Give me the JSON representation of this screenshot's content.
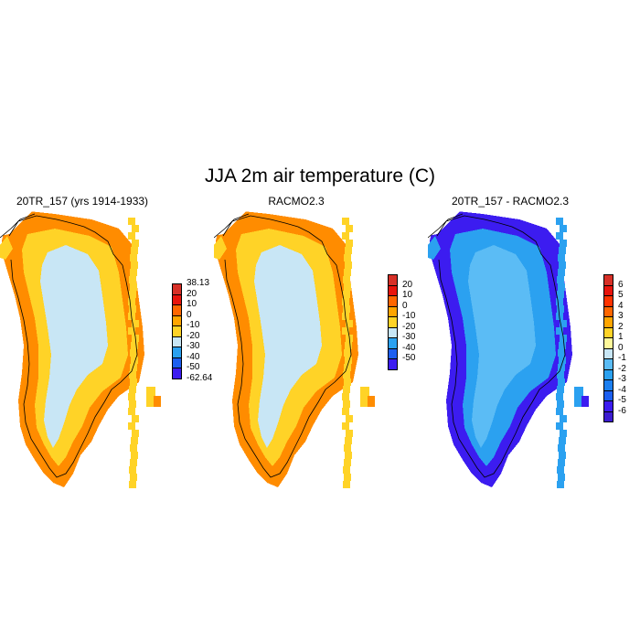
{
  "title": "JJA 2m air temperature (C)",
  "panels": [
    {
      "title": "20TR_157 (yrs 1914-1933)",
      "colorbar": {
        "labels": [
          "38.13",
          "20",
          "10",
          "0",
          "-10",
          "-20",
          "-30",
          "-40",
          "-50",
          "-62.64"
        ],
        "colors": [
          "#d73027",
          "#e8140c",
          "#ff6600",
          "#ffa500",
          "#ffd327",
          "#c8e6f5",
          "#2ba1f0",
          "#1c5ff0",
          "#3c1cf0"
        ]
      },
      "map": {
        "interior": "#c8e6f5",
        "ring": "#ffd327",
        "edge": "#ff8c00",
        "edge_side": "west-south"
      }
    },
    {
      "title": "RACMO2.3",
      "colorbar": {
        "labels": [
          "20",
          "10",
          "0",
          "-10",
          "-20",
          "-30",
          "-40",
          "-50"
        ],
        "colors": [
          "#d73027",
          "#e8140c",
          "#ff6600",
          "#ffa500",
          "#ffd327",
          "#c8e6f5",
          "#2ba1f0",
          "#1c5ff0",
          "#3c1cf0"
        ]
      },
      "map": {
        "interior": "#c8e6f5",
        "ring": "#ffd327",
        "edge": "#ff8c00",
        "edge_side": "all"
      }
    },
    {
      "title": "20TR_157 - RACMO2.3",
      "colorbar": {
        "labels": [
          "6",
          "5",
          "4",
          "3",
          "2",
          "1",
          "0",
          "-1",
          "-2",
          "-3",
          "-4",
          "-5",
          "-6"
        ],
        "colors": [
          "#d73027",
          "#e8140c",
          "#ff3300",
          "#ff6600",
          "#ffa500",
          "#ffd327",
          "#fff89a",
          "#c8e6f5",
          "#5bbcf5",
          "#2ba1f0",
          "#1c7ff0",
          "#1c5ff0",
          "#3c1cf0",
          "#3c1cd0"
        ]
      },
      "map": {
        "interior": "#5bbcf5",
        "ring": "#2ba1f0",
        "edge": "#3c1cf0",
        "edge_side": "north-east"
      }
    }
  ]
}
